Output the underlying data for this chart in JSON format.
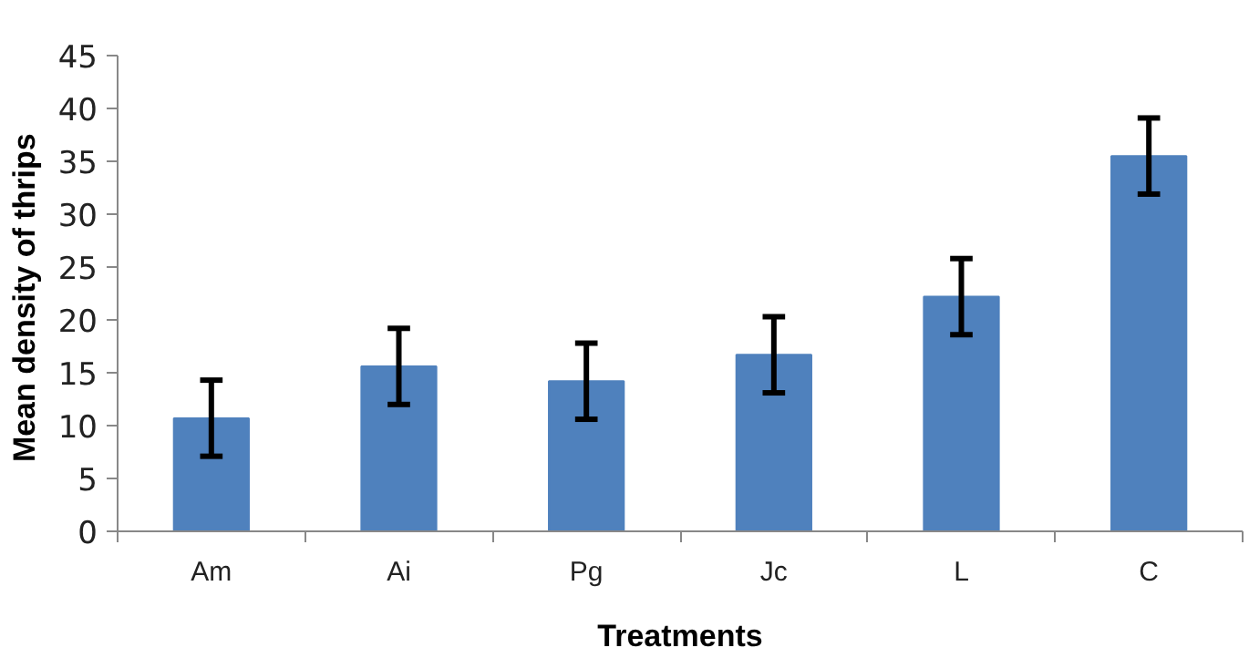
{
  "chart_data": {
    "type": "bar",
    "xlabel": "Treatments",
    "ylabel": "Mean density  of thrips",
    "categories": [
      "Am",
      "Ai",
      "Pg",
      "Jc",
      "L",
      "C"
    ],
    "values": [
      10.7,
      15.6,
      14.2,
      16.7,
      22.2,
      35.5
    ],
    "errors": [
      3.6,
      3.6,
      3.6,
      3.6,
      3.6,
      3.6
    ],
    "color": "#4f81bd",
    "ylim": [
      0,
      45
    ],
    "yticks": [
      0,
      5,
      10,
      15,
      20,
      25,
      30,
      35,
      40,
      45
    ],
    "grid": false
  }
}
